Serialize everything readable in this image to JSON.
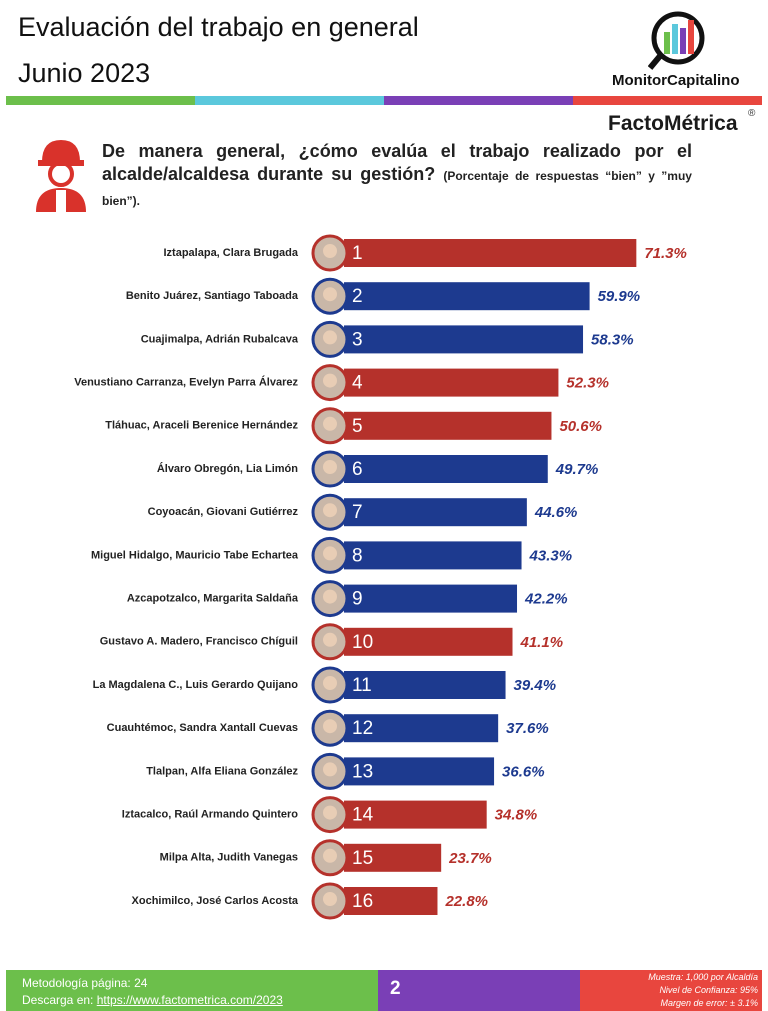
{
  "header": {
    "title": "Evaluación del trabajo en general",
    "subtitle": "Junio 2023",
    "brand": "MonitorCapitalino",
    "logo": "FactoMétrica",
    "registered": "®"
  },
  "question": {
    "text": "De manera general, ¿cómo evalúa el trabajo realizado por el alcalde/alcaldesa durante su gestión?",
    "note": "(Porcentaje de respuestas “bien” y ”muy bien”)."
  },
  "chart_data": {
    "type": "bar",
    "orientation": "horizontal",
    "categories": [
      "Iztapalapa, Clara Brugada",
      "Benito Juárez, Santiago Taboada",
      "Cuajimalpa, Adrián Rubalcava",
      "Venustiano Carranza, Evelyn Parra Álvarez",
      "Tláhuac, Araceli Berenice Hernández",
      "Álvaro Obregón, Lia Limón",
      "Coyoacán, Giovani Gutiérrez",
      "Miguel Hidalgo, Mauricio Tabe Echartea",
      "Azcapotzalco, Margarita Saldaña",
      "Gustavo A. Madero, Francisco Chíguil",
      "La Magdalena C., Luis Gerardo Quijano",
      "Cuauhtémoc, Sandra Xantall Cuevas",
      "Tlalpan, Alfa Eliana González",
      "Iztacalco, Raúl Armando Quintero",
      "Milpa Alta, Judith Vanegas",
      "Xochimilco, José Carlos Acosta"
    ],
    "ranks": [
      1,
      2,
      3,
      4,
      5,
      6,
      7,
      8,
      9,
      10,
      11,
      12,
      13,
      14,
      15,
      16
    ],
    "values": [
      71.3,
      59.9,
      58.3,
      52.3,
      50.6,
      49.7,
      44.6,
      43.3,
      42.2,
      41.1,
      39.4,
      37.6,
      36.6,
      34.8,
      23.7,
      22.8
    ],
    "value_labels": [
      "71.3%",
      "59.9%",
      "58.3%",
      "52.3%",
      "50.6%",
      "49.7%",
      "44.6%",
      "43.3%",
      "42.2%",
      "41.1%",
      "39.4%",
      "37.6%",
      "36.6%",
      "34.8%",
      "23.7%",
      "22.8%"
    ],
    "colors": [
      "#b5312b",
      "#1d3a8f",
      "#1d3a8f",
      "#b5312b",
      "#b5312b",
      "#1d3a8f",
      "#1d3a8f",
      "#1d3a8f",
      "#1d3a8f",
      "#b5312b",
      "#1d3a8f",
      "#1d3a8f",
      "#1d3a8f",
      "#b5312b",
      "#b5312b",
      "#b5312b"
    ]
  },
  "footer": {
    "methodology": "Metodología página: 24",
    "download_label": "Descarga en:",
    "download_url": "https://www.factometrica.com/2023",
    "page": "2",
    "sample": "Muestra:  1,000 por Alcaldía",
    "confidence": "Nivel de Confianza: 95%",
    "error": "Margen de error: ± 3.1%"
  }
}
